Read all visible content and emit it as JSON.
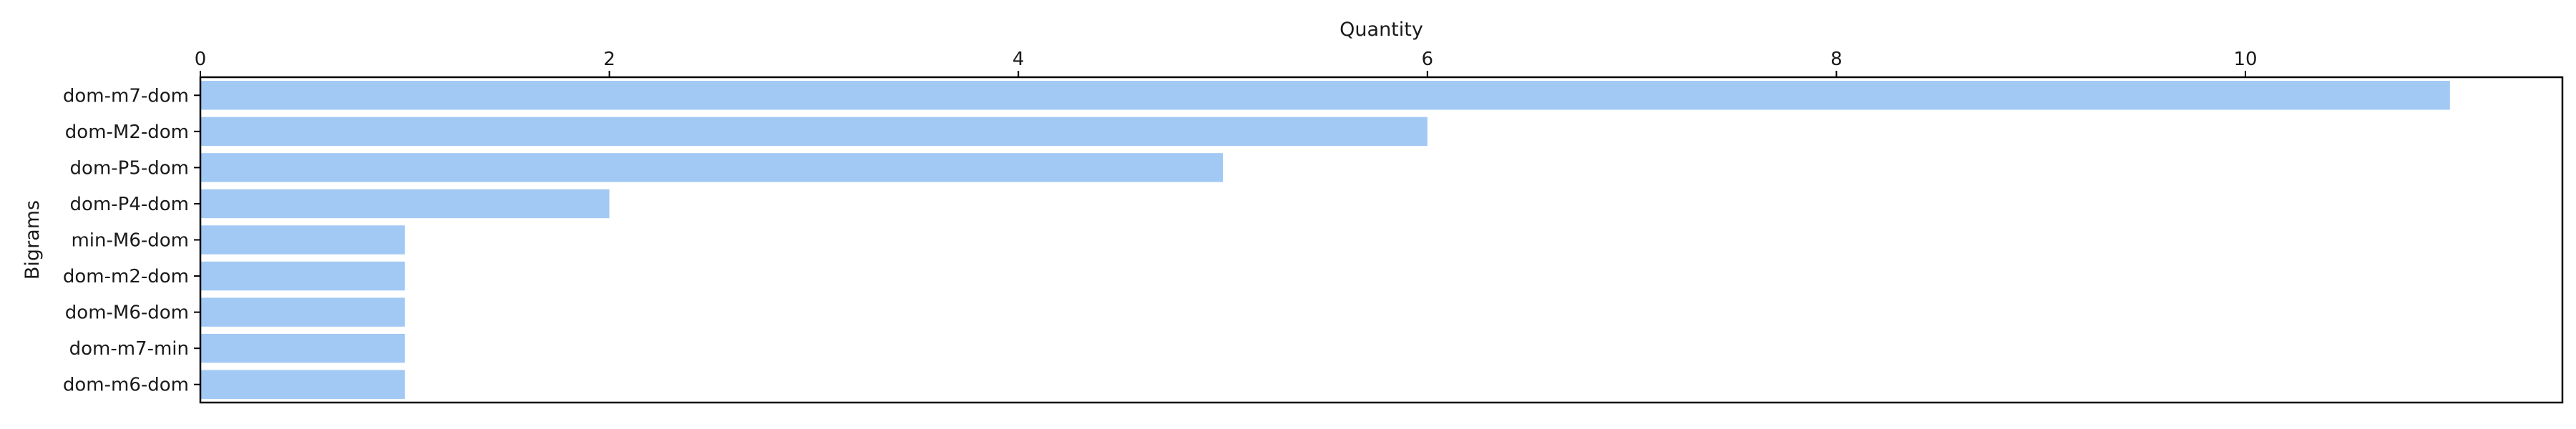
{
  "chart_data": {
    "type": "bar",
    "orientation": "horizontal",
    "xlabel": "Quantity",
    "ylabel": "Bigrams",
    "x_axis_position": "top",
    "xlim": [
      0,
      11.55
    ],
    "xticks": [
      "0",
      "2",
      "4",
      "6",
      "8",
      "10"
    ],
    "grid": false,
    "categories": [
      "dom-m7-dom",
      "dom-M2-dom",
      "dom-P5-dom",
      "dom-P4-dom",
      "min-M6-dom",
      "dom-m2-dom",
      "dom-M6-dom",
      "dom-m7-min",
      "dom-m6-dom"
    ],
    "values": [
      11,
      6,
      5,
      2,
      1,
      1,
      1,
      1,
      1
    ],
    "bar_color": "#a1c9f4"
  }
}
